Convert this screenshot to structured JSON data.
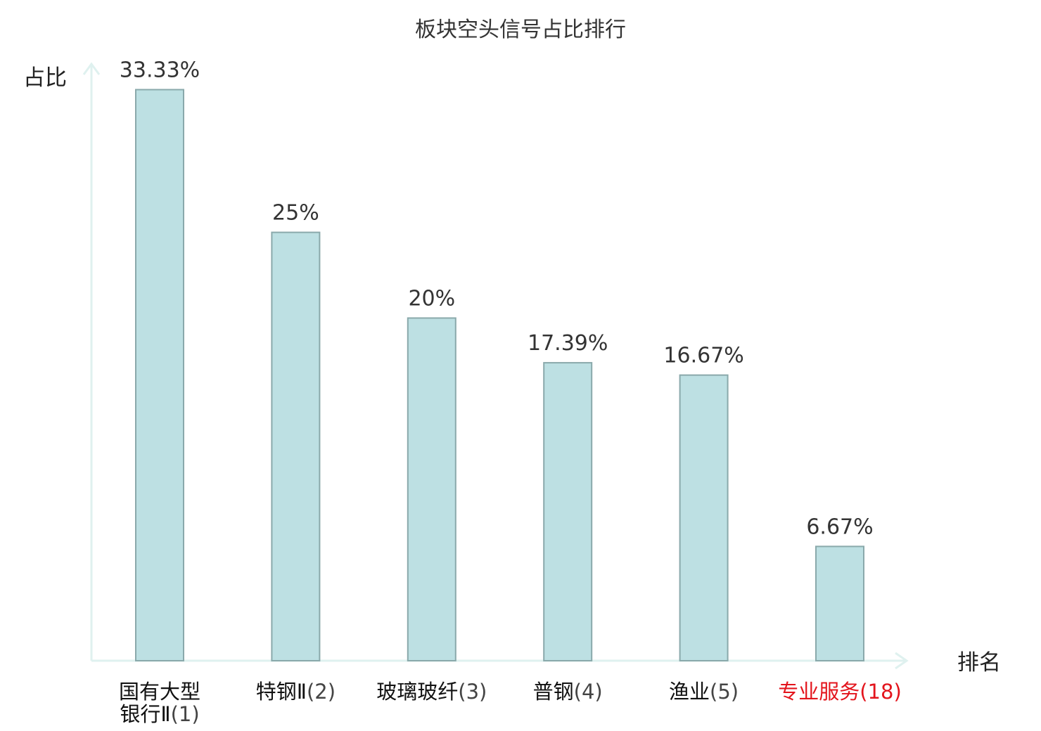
{
  "chart_data": {
    "type": "bar",
    "title": "板块空头信号占比排行",
    "ylabel": "占比",
    "xlabel": "排名",
    "ylim": [
      0,
      34.5
    ],
    "categories": [
      [
        "国有大型",
        "银行Ⅱ",
        "(1)"
      ],
      [
        "特钢Ⅱ",
        "(2)"
      ],
      [
        "玻璃玻纤",
        "(3)"
      ],
      [
        "普钢",
        "(4)"
      ],
      [
        "渔业",
        "(5)"
      ],
      [
        "专业服务",
        "(18)"
      ]
    ],
    "values": [
      33.33,
      25,
      20,
      17.39,
      16.67,
      6.67
    ],
    "value_labels": [
      "33.33%",
      "25%",
      "20%",
      "17.39%",
      "16.67%",
      "6.67%"
    ],
    "highlight_index": 5,
    "grid": false,
    "colors": {
      "bar_fill": "#bde0e3",
      "bar_stroke": "#8aa9ab",
      "axis": "#dff1ef",
      "text": "#333333",
      "highlight_text": "#e3141c"
    }
  }
}
